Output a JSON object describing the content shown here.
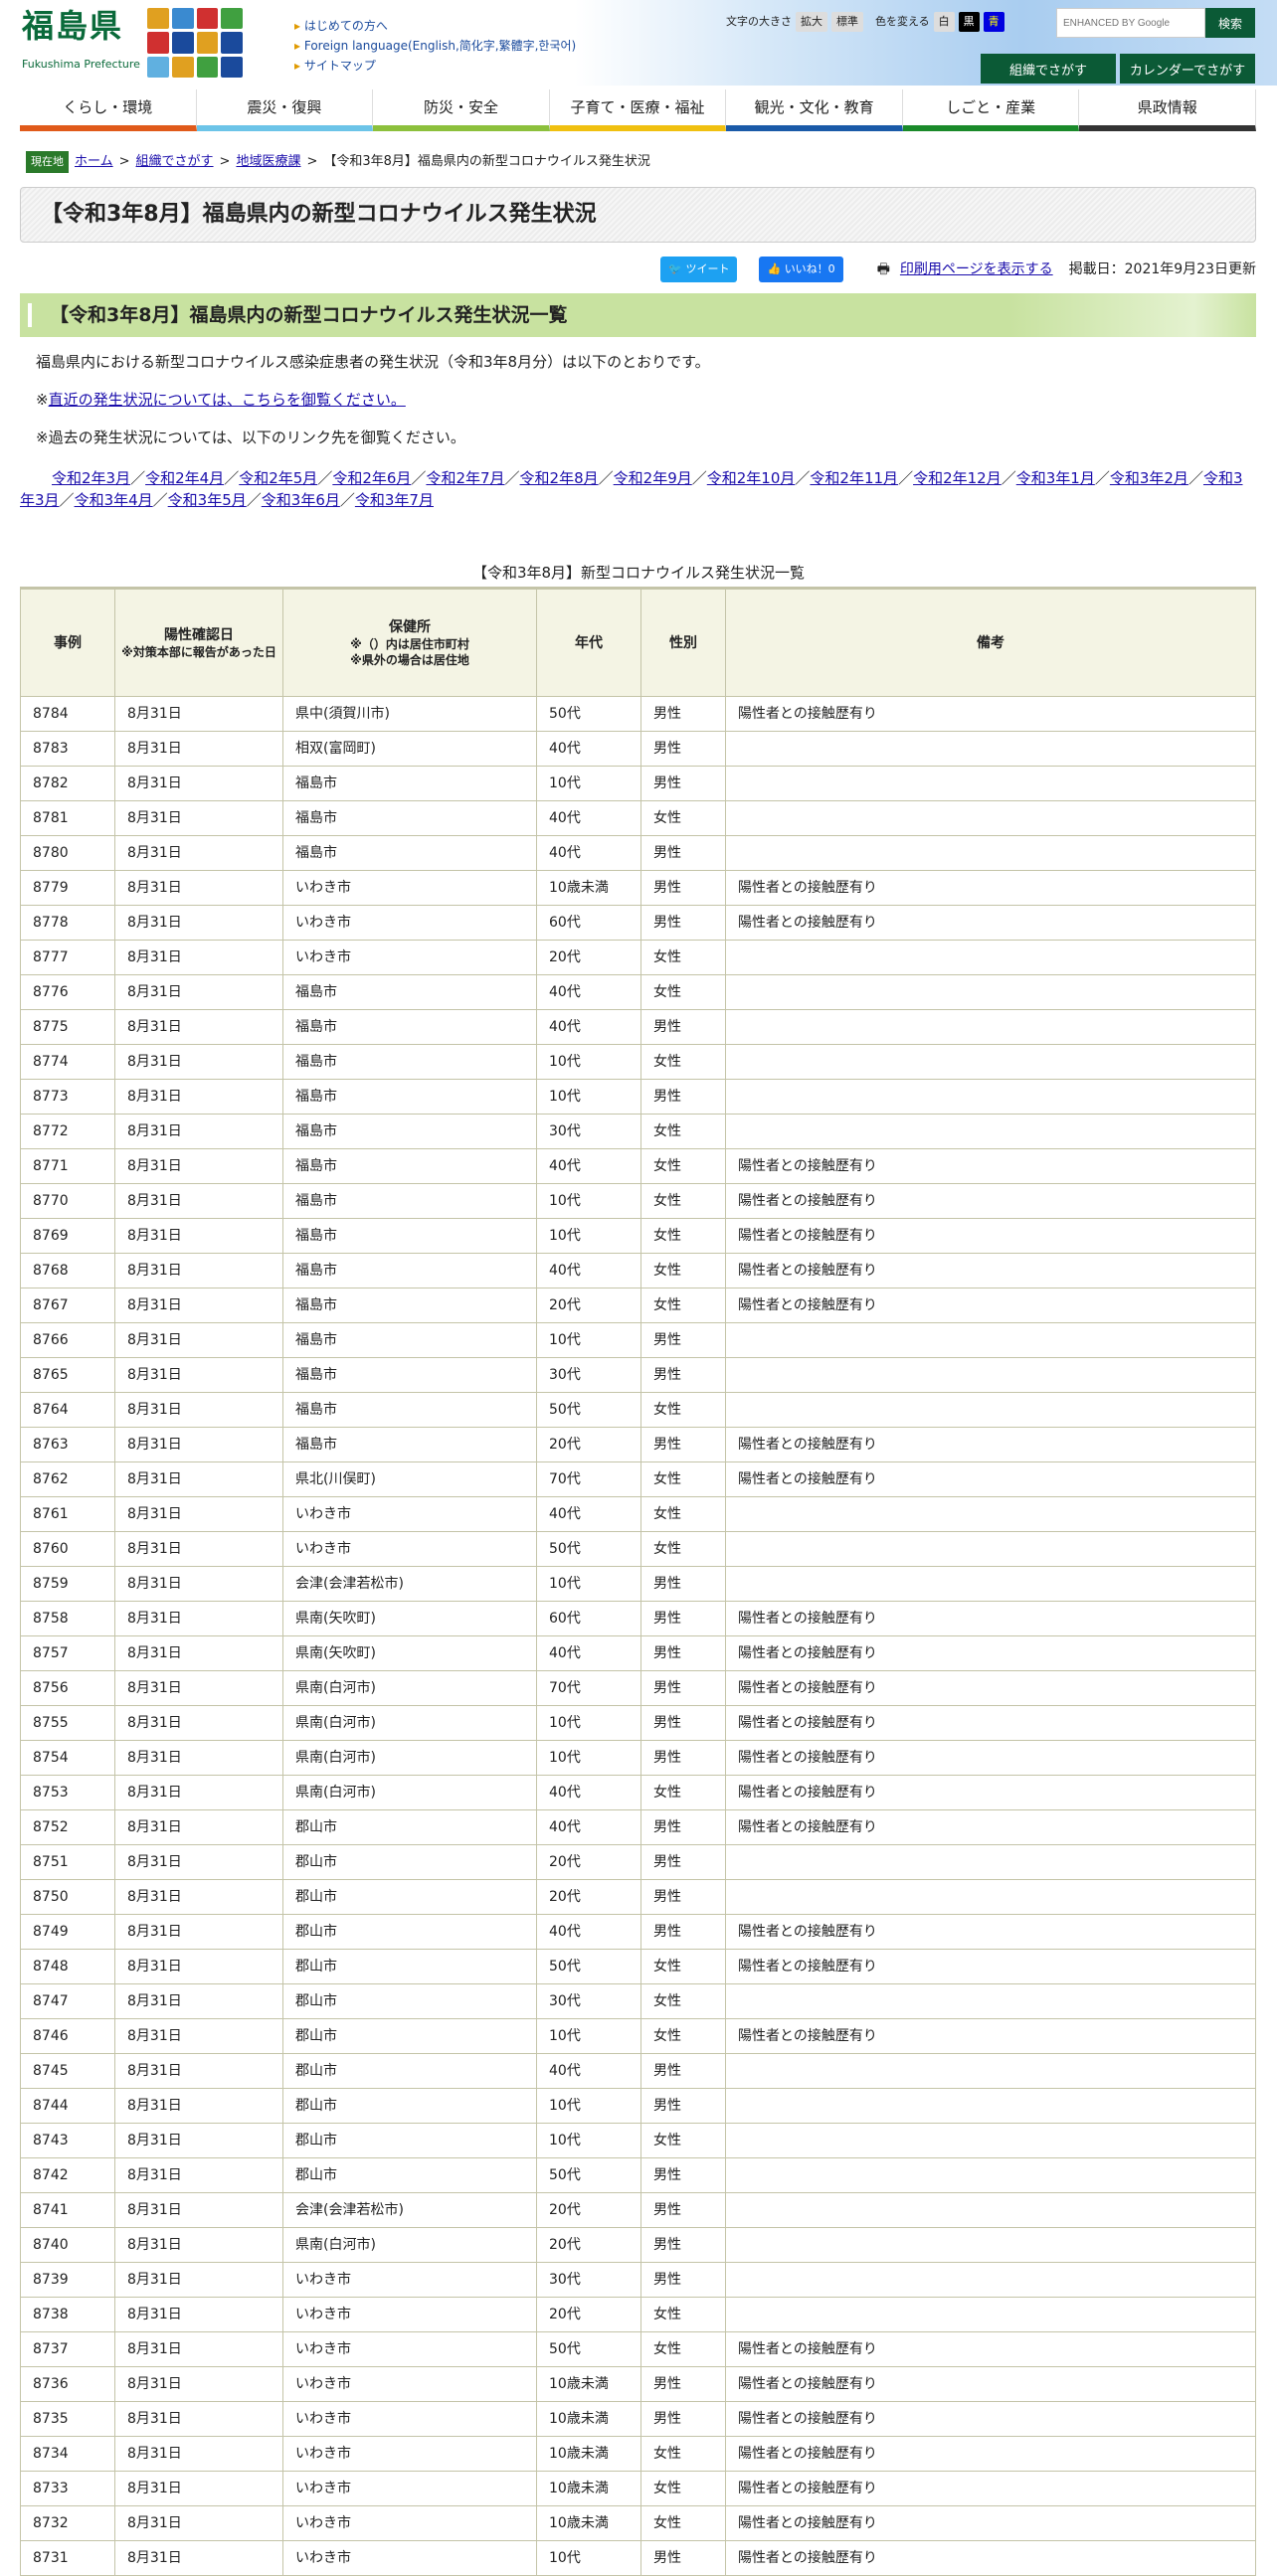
{
  "header": {
    "logo_text": "福島県",
    "logo_sub": "Fukushima Prefecture",
    "links": [
      "はじめての方へ",
      "Foreign language(English,简化字,繁體字,한국어)",
      "サイトマップ"
    ],
    "font_size_label": "文字の大きさ",
    "font_large": "拡大",
    "font_standard": "標準",
    "color_label": "色を変える",
    "color_white": "白",
    "color_black": "黒",
    "color_blue": "青",
    "search_placeholder": "ENHANCED BY Google",
    "search_button": "検索",
    "org_search": "組織でさがす",
    "calendar_search": "カレンダーでさがす"
  },
  "nav": [
    {
      "label": "くらし・環境",
      "color": "#e05a1a"
    },
    {
      "label": "震災・復興",
      "color": "#6cc4e8"
    },
    {
      "label": "防災・安全",
      "color": "#8cc03c"
    },
    {
      "label": "子育て・医療・福祉",
      "color": "#f0c010"
    },
    {
      "label": "観光・文化・教育",
      "color": "#1a5aa8"
    },
    {
      "label": "しごと・産業",
      "color": "#1a8a2a"
    },
    {
      "label": "県政情報",
      "color": "#333333"
    }
  ],
  "breadcrumb": {
    "here": "現在地",
    "items": [
      "ホーム",
      "組織でさがす",
      "地域医療課"
    ],
    "current": "【令和3年8月】福島県内の新型コロナウイルス発生状況"
  },
  "page_title": "【令和3年8月】福島県内の新型コロナウイルス発生状況",
  "social": {
    "tweet": "ツイート",
    "like": "いいね！0",
    "print": "印刷用ページを表示する",
    "posted": "掲載日：2021年9月23日更新"
  },
  "section_title": "【令和3年8月】福島県内の新型コロナウイルス発生状況一覧",
  "para1": "福島県内における新型コロナウイルス感染症患者の発生状況（令和3年8月分）は以下のとおりです。",
  "para2_prefix": "※",
  "para2_link": "直近の発生状況については、こちらを御覧ください。",
  "para3": "※過去の発生状況については、以下のリンク先を御覧ください。",
  "past_links": [
    "令和2年3月",
    "令和2年4月",
    "令和2年5月",
    "令和2年6月",
    "令和2年7月",
    "令和2年8月",
    "令和2年9月",
    "令和2年10月",
    "令和2年11月",
    "令和2年12月",
    "令和3年1月",
    "令和3年2月",
    "令和3年3月",
    "令和3年4月",
    "令和3年5月",
    "令和3年6月",
    "令和3年7月"
  ],
  "table": {
    "caption": "【令和3年8月】新型コロナウイルス発生状況一覧",
    "headers": {
      "case": "事例",
      "date": "陽性確認日",
      "date_note": "※対策本部に報告があった日",
      "office": "保健所",
      "office_note1": "※（）内は居住市町村",
      "office_note2": "※県外の場合は居住地",
      "age": "年代",
      "sex": "性別",
      "note": "備考"
    },
    "rows": [
      [
        "8784",
        "8月31日",
        "県中(須賀川市)",
        "50代",
        "男性",
        "陽性者との接触歴有り"
      ],
      [
        "8783",
        "8月31日",
        "相双(富岡町)",
        "40代",
        "男性",
        ""
      ],
      [
        "8782",
        "8月31日",
        "福島市",
        "10代",
        "男性",
        ""
      ],
      [
        "8781",
        "8月31日",
        "福島市",
        "40代",
        "女性",
        ""
      ],
      [
        "8780",
        "8月31日",
        "福島市",
        "40代",
        "男性",
        ""
      ],
      [
        "8779",
        "8月31日",
        "いわき市",
        "10歳未満",
        "男性",
        "陽性者との接触歴有り"
      ],
      [
        "8778",
        "8月31日",
        "いわき市",
        "60代",
        "男性",
        "陽性者との接触歴有り"
      ],
      [
        "8777",
        "8月31日",
        "いわき市",
        "20代",
        "女性",
        ""
      ],
      [
        "8776",
        "8月31日",
        "福島市",
        "40代",
        "女性",
        ""
      ],
      [
        "8775",
        "8月31日",
        "福島市",
        "40代",
        "男性",
        ""
      ],
      [
        "8774",
        "8月31日",
        "福島市",
        "10代",
        "女性",
        ""
      ],
      [
        "8773",
        "8月31日",
        "福島市",
        "10代",
        "男性",
        ""
      ],
      [
        "8772",
        "8月31日",
        "福島市",
        "30代",
        "女性",
        ""
      ],
      [
        "8771",
        "8月31日",
        "福島市",
        "40代",
        "女性",
        "陽性者との接触歴有り"
      ],
      [
        "8770",
        "8月31日",
        "福島市",
        "10代",
        "女性",
        "陽性者との接触歴有り"
      ],
      [
        "8769",
        "8月31日",
        "福島市",
        "10代",
        "女性",
        "陽性者との接触歴有り"
      ],
      [
        "8768",
        "8月31日",
        "福島市",
        "40代",
        "女性",
        "陽性者との接触歴有り"
      ],
      [
        "8767",
        "8月31日",
        "福島市",
        "20代",
        "女性",
        "陽性者との接触歴有り"
      ],
      [
        "8766",
        "8月31日",
        "福島市",
        "10代",
        "男性",
        ""
      ],
      [
        "8765",
        "8月31日",
        "福島市",
        "30代",
        "男性",
        ""
      ],
      [
        "8764",
        "8月31日",
        "福島市",
        "50代",
        "女性",
        ""
      ],
      [
        "8763",
        "8月31日",
        "福島市",
        "20代",
        "男性",
        "陽性者との接触歴有り"
      ],
      [
        "8762",
        "8月31日",
        "県北(川俣町)",
        "70代",
        "女性",
        "陽性者との接触歴有り"
      ],
      [
        "8761",
        "8月31日",
        "いわき市",
        "40代",
        "女性",
        ""
      ],
      [
        "8760",
        "8月31日",
        "いわき市",
        "50代",
        "女性",
        ""
      ],
      [
        "8759",
        "8月31日",
        "会津(会津若松市)",
        "10代",
        "男性",
        ""
      ],
      [
        "8758",
        "8月31日",
        "県南(矢吹町)",
        "60代",
        "男性",
        "陽性者との接触歴有り"
      ],
      [
        "8757",
        "8月31日",
        "県南(矢吹町)",
        "40代",
        "男性",
        "陽性者との接触歴有り"
      ],
      [
        "8756",
        "8月31日",
        "県南(白河市)",
        "70代",
        "男性",
        "陽性者との接触歴有り"
      ],
      [
        "8755",
        "8月31日",
        "県南(白河市)",
        "10代",
        "男性",
        "陽性者との接触歴有り"
      ],
      [
        "8754",
        "8月31日",
        "県南(白河市)",
        "10代",
        "男性",
        "陽性者との接触歴有り"
      ],
      [
        "8753",
        "8月31日",
        "県南(白河市)",
        "40代",
        "女性",
        "陽性者との接触歴有り"
      ],
      [
        "8752",
        "8月31日",
        "郡山市",
        "40代",
        "男性",
        "陽性者との接触歴有り"
      ],
      [
        "8751",
        "8月31日",
        "郡山市",
        "20代",
        "男性",
        ""
      ],
      [
        "8750",
        "8月31日",
        "郡山市",
        "20代",
        "男性",
        ""
      ],
      [
        "8749",
        "8月31日",
        "郡山市",
        "40代",
        "男性",
        "陽性者との接触歴有り"
      ],
      [
        "8748",
        "8月31日",
        "郡山市",
        "50代",
        "女性",
        "陽性者との接触歴有り"
      ],
      [
        "8747",
        "8月31日",
        "郡山市",
        "30代",
        "女性",
        ""
      ],
      [
        "8746",
        "8月31日",
        "郡山市",
        "10代",
        "女性",
        "陽性者との接触歴有り"
      ],
      [
        "8745",
        "8月31日",
        "郡山市",
        "40代",
        "男性",
        ""
      ],
      [
        "8744",
        "8月31日",
        "郡山市",
        "10代",
        "男性",
        ""
      ],
      [
        "8743",
        "8月31日",
        "郡山市",
        "10代",
        "女性",
        ""
      ],
      [
        "8742",
        "8月31日",
        "郡山市",
        "50代",
        "男性",
        ""
      ],
      [
        "8741",
        "8月31日",
        "会津(会津若松市)",
        "20代",
        "男性",
        ""
      ],
      [
        "8740",
        "8月31日",
        "県南(白河市)",
        "20代",
        "男性",
        ""
      ],
      [
        "8739",
        "8月31日",
        "いわき市",
        "30代",
        "男性",
        ""
      ],
      [
        "8738",
        "8月31日",
        "いわき市",
        "20代",
        "女性",
        ""
      ],
      [
        "8737",
        "8月31日",
        "いわき市",
        "50代",
        "女性",
        "陽性者との接触歴有り"
      ],
      [
        "8736",
        "8月31日",
        "いわき市",
        "10歳未満",
        "男性",
        "陽性者との接触歴有り"
      ],
      [
        "8735",
        "8月31日",
        "いわき市",
        "10歳未満",
        "男性",
        "陽性者との接触歴有り"
      ],
      [
        "8734",
        "8月31日",
        "いわき市",
        "10歳未満",
        "女性",
        "陽性者との接触歴有り"
      ],
      [
        "8733",
        "8月31日",
        "いわき市",
        "10歳未満",
        "女性",
        "陽性者との接触歴有り"
      ],
      [
        "8732",
        "8月31日",
        "いわき市",
        "10歳未満",
        "女性",
        "陽性者との接触歴有り"
      ],
      [
        "8731",
        "8月31日",
        "いわき市",
        "10代",
        "男性",
        "陽性者との接触歴有り"
      ]
    ]
  }
}
